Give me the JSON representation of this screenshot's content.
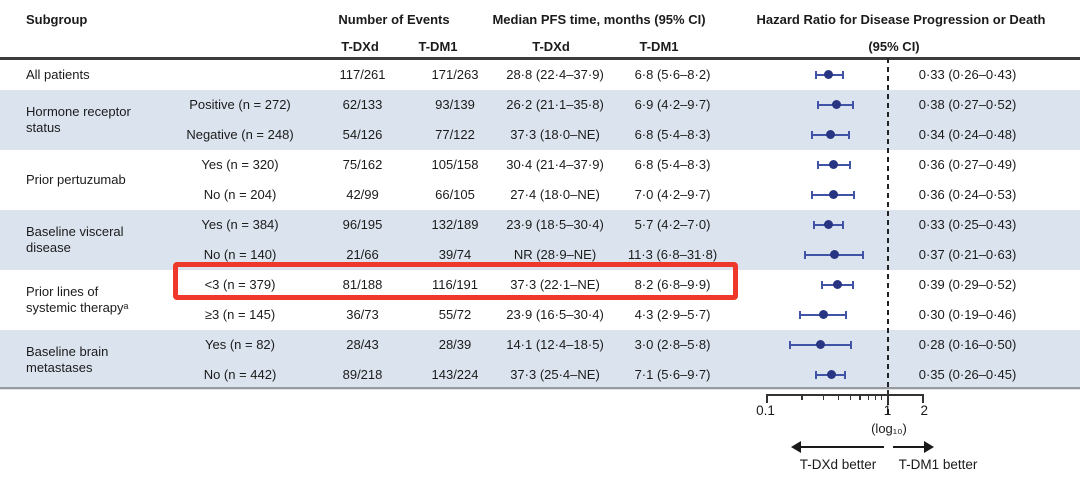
{
  "header": {
    "subgroup": "Subgroup",
    "events_group": "Number of Events",
    "median_group": "Median PFS time, months (95% CI)",
    "hr_group_line1": "Hazard Ratio for Disease Progression or Death",
    "hr_group_line2": "(95% CI)",
    "events_tdxd": "T-DXd",
    "events_tdm1": "T-DM1",
    "median_tdxd": "T-DXd",
    "median_tdm1": "T-DM1"
  },
  "groups": [
    {
      "label_lines": [
        "All patients"
      ],
      "band": false,
      "rows": [
        {
          "level": "",
          "events_tdxd": "117/261",
          "events_tdm1": "171/263",
          "median_tdxd": "28·8 (22·4–37·9)",
          "median_tdm1": "6·8 (5·6–8·2)",
          "hr_text": "0·33 (0·26–0·43)",
          "hr": 0.33,
          "lo": 0.26,
          "hi": 0.43,
          "highlight": false
        }
      ]
    },
    {
      "label_lines": [
        "Hormone receptor",
        "status"
      ],
      "band": true,
      "rows": [
        {
          "level": "Positive (n = 272)",
          "events_tdxd": "62/133",
          "events_tdm1": "93/139",
          "median_tdxd": "26·2 (21·1–35·8)",
          "median_tdm1": "6·9 (4·2–9·7)",
          "hr_text": "0·38 (0·27–0·52)",
          "hr": 0.38,
          "lo": 0.27,
          "hi": 0.52,
          "highlight": false
        },
        {
          "level": "Negative (n = 248)",
          "events_tdxd": "54/126",
          "events_tdm1": "77/122",
          "median_tdxd": "37·3 (18·0–NE)",
          "median_tdm1": "6·8 (5·4–8·3)",
          "hr_text": "0·34 (0·24–0·48)",
          "hr": 0.34,
          "lo": 0.24,
          "hi": 0.48,
          "highlight": false
        }
      ]
    },
    {
      "label_lines": [
        "Prior pertuzumab"
      ],
      "band": false,
      "rows": [
        {
          "level": "Yes (n = 320)",
          "events_tdxd": "75/162",
          "events_tdm1": "105/158",
          "median_tdxd": "30·4 (21·4–37·9)",
          "median_tdm1": "6·8 (5·4–8·3)",
          "hr_text": "0·36 (0·27–0·49)",
          "hr": 0.36,
          "lo": 0.27,
          "hi": 0.49,
          "highlight": false
        },
        {
          "level": "No (n = 204)",
          "events_tdxd": "42/99",
          "events_tdm1": "66/105",
          "median_tdxd": "27·4 (18·0–NE)",
          "median_tdm1": "7·0 (4·2–9·7)",
          "hr_text": "0·36 (0·24–0·53)",
          "hr": 0.36,
          "lo": 0.24,
          "hi": 0.53,
          "highlight": false
        }
      ]
    },
    {
      "label_lines": [
        "Baseline visceral",
        "disease"
      ],
      "band": true,
      "rows": [
        {
          "level": "Yes (n = 384)",
          "events_tdxd": "96/195",
          "events_tdm1": "132/189",
          "median_tdxd": "23·9 (18·5–30·4)",
          "median_tdm1": "5·7 (4·2–7·0)",
          "hr_text": "0·33 (0·25–0·43)",
          "hr": 0.33,
          "lo": 0.25,
          "hi": 0.43,
          "highlight": false
        },
        {
          "level": "No (n = 140)",
          "events_tdxd": "21/66",
          "events_tdm1": "39/74",
          "median_tdxd": "NR (28·9–NE)",
          "median_tdm1": "11·3 (6·8–31·8)",
          "hr_text": "0·37 (0·21–0·63)",
          "hr": 0.37,
          "lo": 0.21,
          "hi": 0.63,
          "highlight": false
        }
      ]
    },
    {
      "label_lines": [
        "Prior lines of",
        "systemic therapyᵃ"
      ],
      "band": false,
      "rows": [
        {
          "level": "<3 (n = 379)",
          "events_tdxd": "81/188",
          "events_tdm1": "116/191",
          "median_tdxd": "37·3 (22·1–NE)",
          "median_tdm1": "8·2 (6·8–9·9)",
          "hr_text": "0·39 (0·29–0·52)",
          "hr": 0.39,
          "lo": 0.29,
          "hi": 0.52,
          "highlight": true
        },
        {
          "level": "≥3 (n = 145)",
          "events_tdxd": "36/73",
          "events_tdm1": "55/72",
          "median_tdxd": "23·9 (16·5–30·4)",
          "median_tdm1": "4·3 (2·9–5·7)",
          "hr_text": "0·30 (0·19–0·46)",
          "hr": 0.3,
          "lo": 0.19,
          "hi": 0.46,
          "highlight": false
        }
      ]
    },
    {
      "label_lines": [
        "Baseline brain",
        "metastases"
      ],
      "band": true,
      "rows": [
        {
          "level": "Yes (n = 82)",
          "events_tdxd": "28/43",
          "events_tdm1": "28/39",
          "median_tdxd": "14·1 (12·4–18·5)",
          "median_tdm1": "3·0 (2·8–5·8)",
          "hr_text": "0·28 (0·16–0·50)",
          "hr": 0.28,
          "lo": 0.16,
          "hi": 0.5,
          "highlight": false
        },
        {
          "level": "No (n = 442)",
          "events_tdxd": "89/218",
          "events_tdm1": "143/224",
          "median_tdxd": "37·3 (25·4–NE)",
          "median_tdm1": "7·1 (5·6–9·7)",
          "hr_text": "0·35 (0·26–0·45)",
          "hr": 0.35,
          "lo": 0.26,
          "hi": 0.45,
          "highlight": false
        }
      ]
    }
  ],
  "axis": {
    "major_ticks": [
      {
        "v": 0.1,
        "label": "0.1"
      },
      {
        "v": 1,
        "label": "1"
      },
      {
        "v": 2,
        "label": "2"
      }
    ],
    "minor_ticks": [
      0.2,
      0.3,
      0.4,
      0.5,
      0.6,
      0.7,
      0.8,
      0.9
    ],
    "log_label": "(log₁₀)",
    "left_label": "T-DXd better",
    "right_label": "T-DM1 better"
  },
  "colors": {
    "band_blue": "#dbe4ee",
    "marker_navy": "#283583",
    "whisker_blue": "#4053a7",
    "highlight_red": "#ee382b"
  },
  "chart_data": {
    "type": "scatter",
    "title": "Hazard Ratio for Disease Progression or Death (95% CI)",
    "x_scale": "log10",
    "x_ticks": [
      0.1,
      1,
      2
    ],
    "reference_line": 1,
    "legend_left": "T-DXd better",
    "legend_right": "T-DM1 better",
    "points": [
      {
        "subgroup": "All patients",
        "hr": 0.33,
        "ci": [
          0.26,
          0.43
        ]
      },
      {
        "subgroup": "Hormone receptor status: Positive (n = 272)",
        "hr": 0.38,
        "ci": [
          0.27,
          0.52
        ]
      },
      {
        "subgroup": "Hormone receptor status: Negative (n = 248)",
        "hr": 0.34,
        "ci": [
          0.24,
          0.48
        ]
      },
      {
        "subgroup": "Prior pertuzumab: Yes (n = 320)",
        "hr": 0.36,
        "ci": [
          0.27,
          0.49
        ]
      },
      {
        "subgroup": "Prior pertuzumab: No (n = 204)",
        "hr": 0.36,
        "ci": [
          0.24,
          0.53
        ]
      },
      {
        "subgroup": "Baseline visceral disease: Yes (n = 384)",
        "hr": 0.33,
        "ci": [
          0.25,
          0.43
        ]
      },
      {
        "subgroup": "Baseline visceral disease: No (n = 140)",
        "hr": 0.37,
        "ci": [
          0.21,
          0.63
        ]
      },
      {
        "subgroup": "Prior lines of systemic therapy: <3 (n = 379)",
        "hr": 0.39,
        "ci": [
          0.29,
          0.52
        ]
      },
      {
        "subgroup": "Prior lines of systemic therapy: ≥3 (n = 145)",
        "hr": 0.3,
        "ci": [
          0.19,
          0.46
        ]
      },
      {
        "subgroup": "Baseline brain metastases: Yes (n = 82)",
        "hr": 0.28,
        "ci": [
          0.16,
          0.5
        ]
      },
      {
        "subgroup": "Baseline brain metastases: No (n = 442)",
        "hr": 0.35,
        "ci": [
          0.26,
          0.45
        ]
      }
    ]
  }
}
